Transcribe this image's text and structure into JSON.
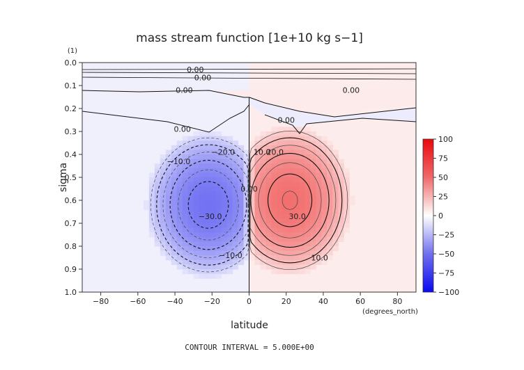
{
  "chart_data": {
    "type": "contour",
    "title": "mass stream function [1e+10 kg s−1]",
    "xlabel": "latitude",
    "x_units": "(degrees_north)",
    "ylabel": "sigma",
    "y_units_label": "(1)",
    "footer": "CONTOUR INTERVAL = 5.000E+00",
    "xlim": [
      -90,
      90
    ],
    "ylim": [
      0.0,
      1.0
    ],
    "y_inverted": true,
    "x_ticks": [
      -80,
      -60,
      -40,
      -20,
      0,
      20,
      40,
      60,
      80
    ],
    "x_tick_labels": [
      "−80",
      "−60",
      "−40",
      "−20",
      "0",
      "20",
      "40",
      "60",
      "80"
    ],
    "y_ticks": [
      0.0,
      0.1,
      0.2,
      0.3,
      0.4,
      0.5,
      0.6,
      0.7,
      0.8,
      0.9,
      1.0
    ],
    "y_tick_labels": [
      "0.0",
      "0.1",
      "0.2",
      "0.3",
      "0.4",
      "0.5",
      "0.6",
      "0.7",
      "0.8",
      "0.9",
      "1.0"
    ],
    "contour_interval": 5.0,
    "colorbar": {
      "range": [
        -100,
        100
      ],
      "ticks": [
        100,
        75,
        50,
        25,
        0,
        -25,
        -50,
        -75,
        -100
      ],
      "tick_labels": [
        "100",
        "75",
        "50",
        "25",
        "0",
        "−25",
        "−50",
        "−75",
        "−100"
      ],
      "negative_color": "#3a3ae0",
      "positive_color": "#e03a3a"
    },
    "cells": [
      {
        "name": "southern-cell",
        "sign": -1,
        "center_lat": -22,
        "center_sigma": 0.62,
        "peak": -35,
        "lat_half_width": 34,
        "sigma_half_depth": 0.32
      },
      {
        "name": "northern-cell",
        "sign": 1,
        "center_lat": 22,
        "center_sigma": 0.6,
        "peak": 36,
        "lat_half_width": 34,
        "sigma_half_depth": 0.33
      }
    ],
    "contour_labels": [
      {
        "text": "0.00",
        "lat": -29,
        "sigma": 0.03
      },
      {
        "text": "0.00",
        "lat": -25,
        "sigma": 0.065
      },
      {
        "text": "0.00",
        "lat": -35,
        "sigma": 0.12
      },
      {
        "text": "0.00",
        "lat": 55,
        "sigma": 0.12
      },
      {
        "text": "0.00",
        "lat": -36,
        "sigma": 0.29
      },
      {
        "text": "0.00",
        "lat": 20,
        "sigma": 0.25
      },
      {
        "text": "0.00",
        "lat": 0,
        "sigma": 0.55
      },
      {
        "text": "−10.0",
        "lat": -38,
        "sigma": 0.43
      },
      {
        "text": "−20.0",
        "lat": -14,
        "sigma": 0.39
      },
      {
        "text": "−30.0",
        "lat": -21,
        "sigma": 0.67
      },
      {
        "text": "−10.0",
        "lat": -10,
        "sigma": 0.84
      },
      {
        "text": "10.0",
        "lat": 7,
        "sigma": 0.39
      },
      {
        "text": "20.0",
        "lat": 14,
        "sigma": 0.39
      },
      {
        "text": "30.0",
        "lat": 26,
        "sigma": 0.67
      },
      {
        "text": "10.0",
        "lat": 38,
        "sigma": 0.85
      }
    ]
  }
}
